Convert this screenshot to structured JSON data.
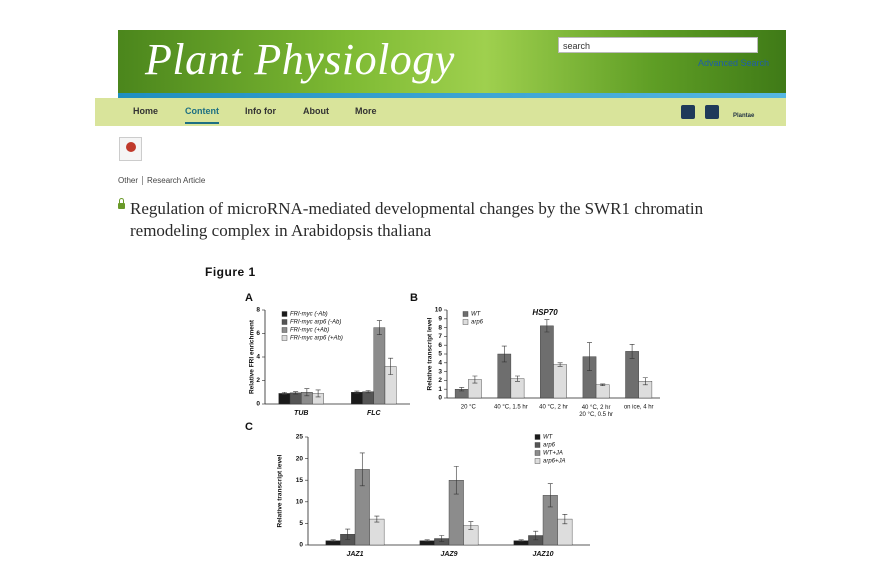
{
  "header": {
    "journal": "Plant Physiology",
    "search_placeholder": "search",
    "advanced_search": "Advanced Search"
  },
  "nav": {
    "items": [
      "Home",
      "Content",
      "Info for",
      "About",
      "More"
    ],
    "active": 1,
    "plantae": "Plantae"
  },
  "breadcrumb": [
    "Other",
    "Research Article"
  ],
  "article_title": "Regulation of microRNA-mediated developmental changes by the SWR1 chromatin remodeling complex in Arabidopsis thaliana",
  "figure_label": "Figure 1",
  "chart_data": [
    {
      "type": "bar",
      "panel": "A",
      "y_label": "Relative FRI enrichment",
      "categories": [
        "TUB",
        "FLC"
      ],
      "series": [
        {
          "name": "FRI-myc (-Ab)",
          "color": "#1a1a1a",
          "values": [
            0.9,
            1.0
          ],
          "errors": [
            0.1,
            0.1
          ]
        },
        {
          "name": "FRI-myc arp6 (-Ab)",
          "color": "#555555",
          "values": [
            0.95,
            1.05
          ],
          "errors": [
            0.1,
            0.1
          ]
        },
        {
          "name": "FRI-myc (+Ab)",
          "color": "#8c8c8c",
          "values": [
            1.0,
            6.5
          ],
          "errors": [
            0.3,
            0.6
          ]
        },
        {
          "name": "FRI-myc arp6 (+Ab)",
          "color": "#dddddd",
          "values": [
            0.9,
            3.2
          ],
          "errors": [
            0.3,
            0.7
          ]
        }
      ],
      "ylim": [
        0,
        8
      ],
      "yticks": [
        0,
        2,
        4,
        6,
        8
      ]
    },
    {
      "type": "bar",
      "panel": "B",
      "title": "HSP70",
      "y_label": "Relative transcript level",
      "categories": [
        "20 °C",
        "40 °C, 1.5 hr",
        "40 °C, 2 hr",
        "40 °C, 2 hr\n20 °C, 0.5 hr",
        "on ice, 4 hr"
      ],
      "series": [
        {
          "name": "WT",
          "color": "#6e6e6e",
          "values": [
            1.0,
            5.0,
            8.2,
            4.7,
            5.3
          ],
          "errors": [
            0.2,
            0.9,
            0.7,
            1.6,
            0.8
          ]
        },
        {
          "name": "arp6",
          "color": "#dddddd",
          "values": [
            2.1,
            2.2,
            3.8,
            1.5,
            1.9
          ],
          "errors": [
            0.4,
            0.3,
            0.2,
            0.1,
            0.4
          ]
        }
      ],
      "ylim": [
        0,
        10
      ],
      "yticks": [
        0,
        1,
        2,
        3,
        4,
        5,
        6,
        7,
        8,
        9,
        10
      ]
    },
    {
      "type": "bar",
      "panel": "C",
      "y_label": "Relative transcript level",
      "categories": [
        "JAZ1",
        "JAZ9",
        "JAZ10"
      ],
      "series": [
        {
          "name": "WT",
          "color": "#1a1a1a",
          "values": [
            1.0,
            1.0,
            1.0
          ],
          "errors": [
            0.2,
            0.2,
            0.2
          ]
        },
        {
          "name": "arp6",
          "color": "#555555",
          "values": [
            2.5,
            1.5,
            2.2
          ],
          "errors": [
            1.2,
            0.7,
            1.0
          ]
        },
        {
          "name": "WT+JA",
          "color": "#8c8c8c",
          "values": [
            17.5,
            15.0,
            11.5
          ],
          "errors": [
            3.8,
            3.2,
            2.7
          ]
        },
        {
          "name": "arp6+JA",
          "color": "#dddddd",
          "values": [
            6.0,
            4.5,
            6.0
          ],
          "errors": [
            0.7,
            0.9,
            1.1
          ]
        }
      ],
      "ylim": [
        0,
        25
      ],
      "yticks": [
        0,
        5,
        10,
        15,
        20,
        25
      ]
    }
  ]
}
